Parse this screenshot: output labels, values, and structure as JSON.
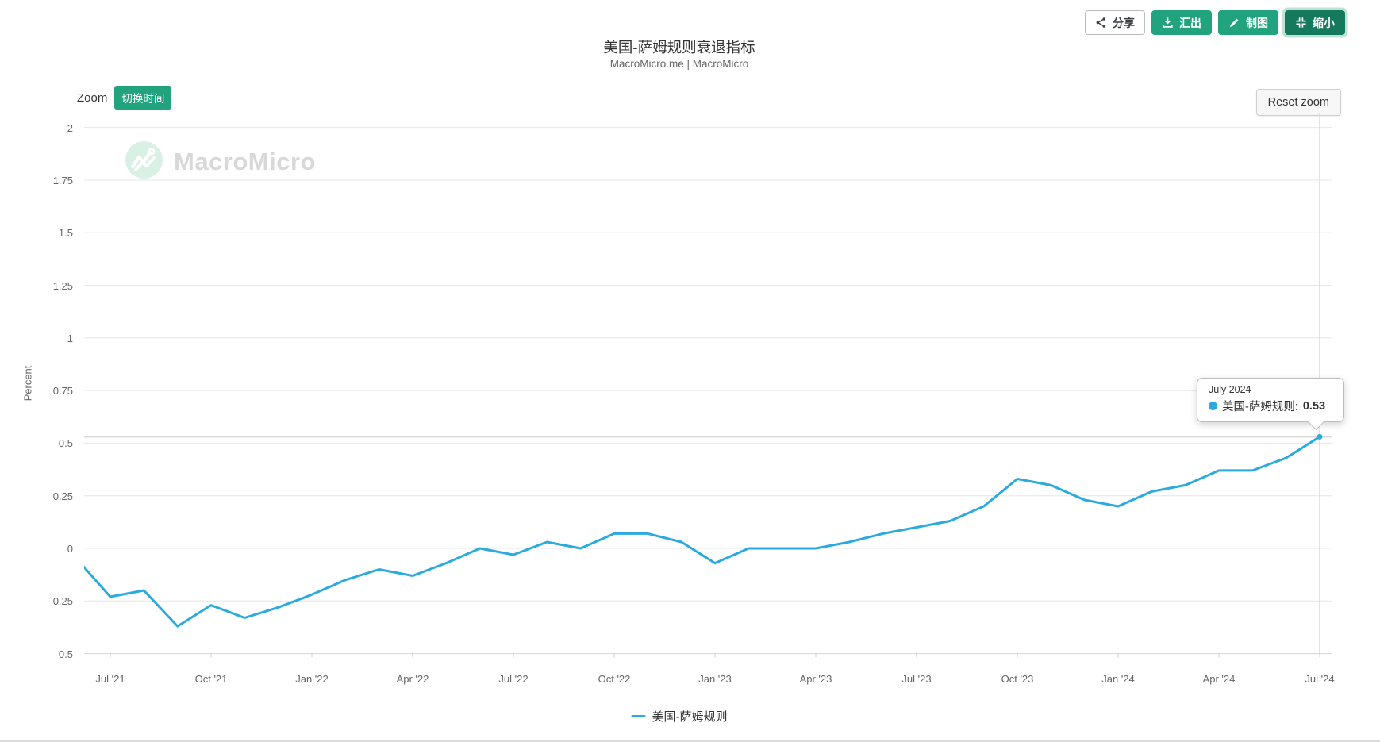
{
  "header": {
    "title": "美国-萨姆规则衰退指标",
    "subtitle": "MacroMicro.me | MacroMicro",
    "buttons": {
      "share": "分享",
      "export": "汇出",
      "make_chart": "制图",
      "shrink": "缩小"
    }
  },
  "toolbar": {
    "zoom_label": "Zoom",
    "switch_time_label": "切换时间",
    "reset_zoom_label": "Reset zoom"
  },
  "watermark": {
    "text": "MacroMicro"
  },
  "tooltip": {
    "date": "July 2024",
    "series": "美国-萨姆规则:",
    "value": "0.53"
  },
  "legend": {
    "label": "美国-萨姆规则"
  },
  "colors": {
    "line": "#2baade",
    "green": "#21a47e",
    "dark_green": "#15795d",
    "grid": "#e6e6e6",
    "axis": "#d4d4d4",
    "crosshair": "#d9d9d9"
  },
  "chart_data": {
    "type": "line",
    "title": "美国-萨姆规则衰退指标",
    "xlabel": "",
    "ylabel": "Percent",
    "ylim": [
      -0.5,
      2
    ],
    "grid": true,
    "legend_position": "bottom",
    "series_name": "美国-萨姆规则",
    "x": [
      "2021-06",
      "2021-07",
      "2021-08",
      "2021-09",
      "2021-10",
      "2021-11",
      "2021-12",
      "2022-01",
      "2022-02",
      "2022-03",
      "2022-04",
      "2022-05",
      "2022-06",
      "2022-07",
      "2022-08",
      "2022-09",
      "2022-10",
      "2022-11",
      "2022-12",
      "2023-01",
      "2023-02",
      "2023-03",
      "2023-04",
      "2023-05",
      "2023-06",
      "2023-07",
      "2023-08",
      "2023-09",
      "2023-10",
      "2023-11",
      "2023-12",
      "2024-01",
      "2024-02",
      "2024-03",
      "2024-04",
      "2024-05",
      "2024-06",
      "2024-07"
    ],
    "values": [
      -0.05,
      -0.23,
      -0.2,
      -0.37,
      -0.27,
      -0.33,
      -0.28,
      -0.22,
      -0.15,
      -0.1,
      -0.13,
      -0.07,
      0.0,
      -0.03,
      0.03,
      0.0,
      0.07,
      0.07,
      0.03,
      -0.07,
      0.0,
      0.0,
      0.0,
      0.03,
      0.07,
      0.1,
      0.13,
      0.2,
      0.33,
      0.3,
      0.23,
      0.2,
      0.27,
      0.3,
      0.37,
      0.37,
      0.43,
      0.53
    ],
    "ytick_labels": [
      "2",
      "1.75",
      "1.5",
      "1.25",
      "1",
      "0.75",
      "0.5",
      "0.25",
      "0",
      "-0.25",
      "-0.5"
    ],
    "ytick_values": [
      2,
      1.75,
      1.5,
      1.25,
      1,
      0.75,
      0.5,
      0.25,
      0,
      -0.25,
      -0.5
    ],
    "xtick_labels": [
      "Jul '21",
      "Oct '21",
      "Jan '22",
      "Apr '22",
      "Jul '22",
      "Oct '22",
      "Jan '23",
      "Apr '23",
      "Jul '23",
      "Oct '23",
      "Jan '24",
      "Apr '24",
      "Jul '24"
    ],
    "highlight_point": {
      "label": "July 2024",
      "value": 0.53
    }
  }
}
